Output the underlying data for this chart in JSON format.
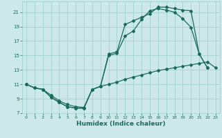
{
  "xlabel": "Humidex (Indice chaleur)",
  "bg_color": "#cce8e8",
  "grid_color": "#99cccc",
  "line_color": "#1a6b5a",
  "xlim": [
    -0.5,
    23.5
  ],
  "ylim": [
    7,
    22.5
  ],
  "yticks": [
    7,
    9,
    11,
    13,
    15,
    17,
    19,
    21
  ],
  "xticks": [
    0,
    1,
    2,
    3,
    4,
    5,
    6,
    7,
    8,
    9,
    10,
    11,
    12,
    13,
    14,
    15,
    16,
    17,
    18,
    19,
    20,
    21,
    22,
    23
  ],
  "s1x": [
    0,
    1,
    2,
    3,
    4,
    5,
    6,
    7,
    8,
    9,
    10,
    11,
    12,
    13,
    14,
    15,
    16,
    17,
    18,
    19,
    20,
    21,
    22
  ],
  "s1y": [
    11,
    10.5,
    10.3,
    9.2,
    8.5,
    7.9,
    7.7,
    7.7,
    10.3,
    10.7,
    15.2,
    15.5,
    19.3,
    19.8,
    20.3,
    20.8,
    21.7,
    21.7,
    21.5,
    21.3,
    21.2,
    15.2,
    13.3
  ],
  "s2x": [
    0,
    1,
    2,
    3,
    4,
    5,
    6,
    7,
    8,
    9,
    10,
    11,
    12,
    13,
    14,
    15,
    16,
    17,
    18,
    19,
    20,
    21,
    22
  ],
  "s2y": [
    11,
    10.5,
    10.3,
    9.2,
    8.5,
    7.9,
    7.7,
    7.7,
    10.3,
    10.7,
    15.0,
    15.3,
    17.7,
    18.4,
    20.0,
    21.2,
    21.5,
    21.3,
    21.0,
    20.1,
    18.9,
    15.2,
    13.3
  ],
  "s3x": [
    0,
    1,
    2,
    3,
    4,
    5,
    6,
    7,
    8,
    9,
    10,
    11,
    12,
    13,
    14,
    15,
    16,
    17,
    18,
    19,
    20,
    21,
    22,
    23
  ],
  "s3y": [
    11,
    10.5,
    10.3,
    9.5,
    8.7,
    8.2,
    7.9,
    7.8,
    10.3,
    10.7,
    11.0,
    11.3,
    11.7,
    12.0,
    12.3,
    12.6,
    12.9,
    13.1,
    13.3,
    13.5,
    13.7,
    13.9,
    14.1,
    13.3
  ]
}
